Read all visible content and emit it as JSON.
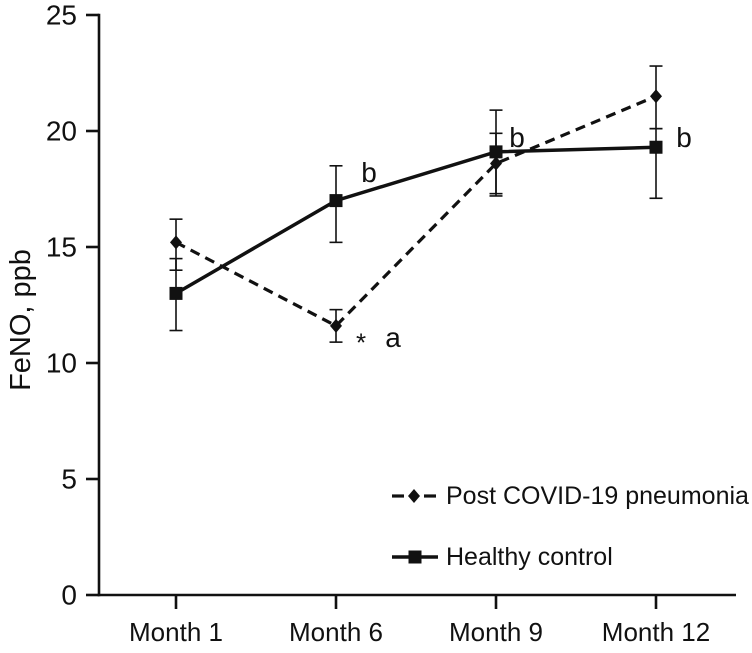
{
  "figure": {
    "background": "#ffffff",
    "ink": "#111111"
  },
  "chart_data": {
    "type": "line",
    "title": "",
    "xlabel": "",
    "ylabel": "FeNO, ppb",
    "categories": [
      "Month 1",
      "Month 6",
      "Month 9",
      "Month 12"
    ],
    "ylim": [
      0,
      25
    ],
    "yticks": [
      0,
      5,
      10,
      15,
      20,
      25
    ],
    "ytick_labels": [
      "0",
      "5",
      "10",
      "15",
      "20",
      "25"
    ],
    "grid": false,
    "legend": {
      "position": "inside-bottom-right",
      "items": [
        "Post COVID-19 pneumonia",
        "Healthy control"
      ]
    },
    "series": [
      {
        "name": "Post COVID-19 pneumonia",
        "slug": "post-covid-19-pneumonia",
        "line_style": "dashed",
        "marker": "diamond",
        "color": "#111111",
        "values": [
          15.2,
          11.6,
          18.6,
          21.5
        ],
        "error_low": [
          14.0,
          10.9,
          17.3,
          20.1
        ],
        "error_high": [
          16.2,
          12.3,
          19.9,
          22.8
        ]
      },
      {
        "name": "Healthy control",
        "slug": "healthy-control",
        "line_style": "solid",
        "marker": "square",
        "color": "#111111",
        "values": [
          13.0,
          17.0,
          19.1,
          19.3
        ],
        "error_low": [
          11.4,
          15.2,
          17.2,
          17.1
        ],
        "error_high": [
          14.5,
          18.5,
          20.9,
          20.1
        ]
      }
    ],
    "annotations": [
      {
        "text": "b",
        "category_index": 1,
        "value": 17.8,
        "dx": 33
      },
      {
        "text": "b",
        "category_index": 2,
        "value": 19.3,
        "dx": 21
      },
      {
        "text": "b",
        "category_index": 3,
        "value": 19.3,
        "dx": 28
      },
      {
        "text": "*",
        "category_index": 1,
        "value": 10.5,
        "dx": 25
      },
      {
        "text": "a",
        "category_index": 1,
        "value": 10.7,
        "dx": 57
      }
    ]
  }
}
